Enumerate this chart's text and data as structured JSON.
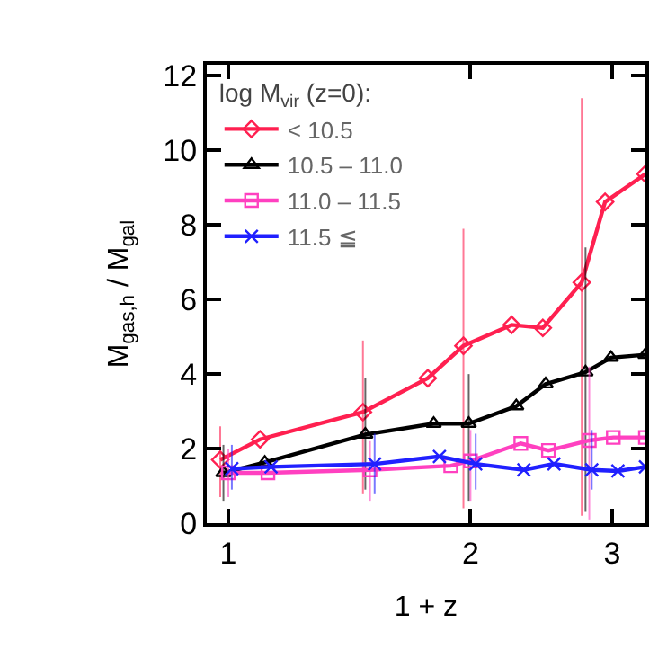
{
  "chart_data": {
    "type": "line",
    "xlabel": "1 + z",
    "ylabel": "M$_{gas,h}$ / M$_{gal}$",
    "legend_title": "log M$_{vir}$ (z=0):",
    "legend": "top left",
    "log": "x",
    "xlim": [
      0.94,
      3.3
    ],
    "xticks": [
      1,
      2,
      3
    ],
    "ylim": [
      0,
      12.3
    ],
    "yticks": [
      0,
      2,
      4,
      6,
      8,
      10,
      12
    ],
    "series": [
      {
        "name": "< 10.5",
        "color": "#ff2050",
        "marker": "diamond",
        "x": [
          0.977,
          1.095,
          1.47,
          1.77,
          1.96,
          2.25,
          2.46,
          2.75,
          2.94,
          3.3
        ],
        "values": [
          1.7,
          2.25,
          2.98,
          3.89,
          4.76,
          5.32,
          5.24,
          6.46,
          8.62,
          9.37
        ],
        "errors": [
          [
            0.7,
            2.6
          ],
          null,
          [
            0.8,
            4.9
          ],
          null,
          [
            0.4,
            7.9
          ],
          null,
          null,
          [
            0.2,
            11.4
          ],
          null,
          null
        ]
      },
      {
        "name": "10.5 – 11.0",
        "color": "#000000",
        "marker": "triangle",
        "x": [
          0.986,
          1.11,
          1.48,
          1.8,
          1.99,
          2.28,
          2.48,
          2.78,
          2.99,
          3.3
        ],
        "values": [
          1.35,
          1.63,
          2.38,
          2.67,
          2.67,
          3.14,
          3.73,
          4.05,
          4.44,
          4.52
        ],
        "errors": [
          [
            0.6,
            2.1
          ],
          null,
          [
            0.9,
            3.9
          ],
          null,
          [
            0.6,
            4.0
          ],
          null,
          null,
          [
            0.3,
            7.4
          ],
          null,
          null
        ]
      },
      {
        "name": "11.0 – 11.5",
        "color": "#ff40c0",
        "marker": "square",
        "x": [
          1.0,
          1.12,
          1.5,
          1.89,
          2.0,
          2.31,
          2.5,
          2.81,
          3.01,
          3.3
        ],
        "values": [
          1.35,
          1.35,
          1.43,
          1.54,
          1.67,
          2.14,
          1.95,
          2.22,
          2.3,
          2.3
        ],
        "errors": [
          [
            0.7,
            2.0
          ],
          null,
          [
            0.6,
            2.2
          ],
          null,
          [
            0.6,
            2.5
          ],
          null,
          null,
          [
            0.1,
            4.2
          ],
          null,
          null
        ]
      },
      {
        "name": "11.5 ≦",
        "color": "#2020ff",
        "marker": "cross",
        "x": [
          1.01,
          1.13,
          1.52,
          1.83,
          2.03,
          2.33,
          2.54,
          2.83,
          3.05,
          3.3
        ],
        "values": [
          1.46,
          1.51,
          1.59,
          1.79,
          1.59,
          1.43,
          1.59,
          1.43,
          1.4,
          1.51
        ],
        "errors": [
          [
            0.9,
            2.1
          ],
          null,
          [
            0.8,
            2.4
          ],
          null,
          [
            0.9,
            2.4
          ],
          null,
          null,
          [
            0.9,
            2.5
          ],
          null,
          null
        ]
      }
    ]
  }
}
